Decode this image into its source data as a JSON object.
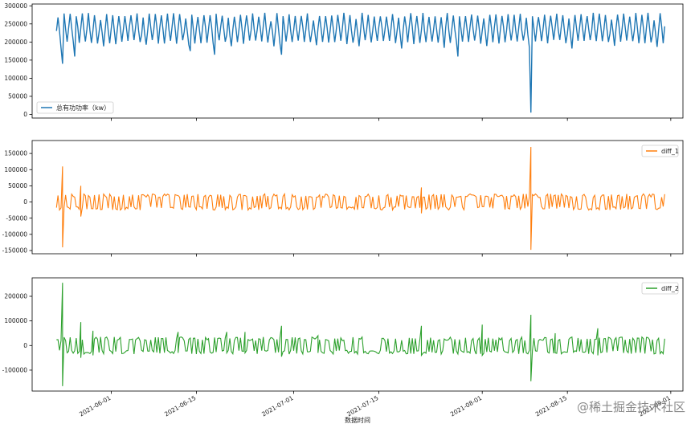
{
  "chart_data": [
    {
      "type": "line",
      "series": [
        {
          "name": "总有功功率（kw）",
          "color": "#1f77b4"
        }
      ],
      "ylim": [
        -10000,
        305000
      ],
      "yticks": [
        0,
        50000,
        100000,
        150000,
        200000,
        250000,
        300000
      ],
      "ytick_labels": [
        "0",
        "50000",
        "100000",
        "150000",
        "200000",
        "250000",
        "300000"
      ],
      "legend_position": "lower-left",
      "profile": {
        "daily_min": 200000,
        "daily_max": 275000,
        "night_dip": 165000
      },
      "events": [
        {
          "x": "2021-05-24",
          "y": 140000
        },
        {
          "x": "2021-05-26",
          "y": 160000
        },
        {
          "x": "2021-06-14",
          "y": 175000
        },
        {
          "x": "2021-06-18",
          "y": 165000
        },
        {
          "x": "2021-06-29",
          "y": 165000
        },
        {
          "x": "2021-07-28",
          "y": 160000
        },
        {
          "x": "2021-08-09",
          "y": 5000
        }
      ]
    },
    {
      "type": "line",
      "series": [
        {
          "name": "diff_1",
          "color": "#ff7f0e"
        }
      ],
      "ylim": [
        -160000,
        190000
      ],
      "yticks": [
        -150000,
        -100000,
        -50000,
        0,
        50000,
        100000,
        150000
      ],
      "ytick_labels": [
        "-150000",
        "-100000",
        "-50000",
        "0",
        "50000",
        "100000",
        "150000"
      ],
      "legend_position": "top-right",
      "band": [
        -25000,
        25000
      ],
      "spikes": [
        {
          "x": "2021-05-24",
          "high": 110000,
          "low": -140000
        },
        {
          "x": "2021-05-27",
          "high": 50000,
          "low": -45000
        },
        {
          "x": "2021-07-22",
          "high": 45000,
          "low": -35000
        },
        {
          "x": "2021-08-09",
          "high": 170000,
          "low": -148000
        }
      ]
    },
    {
      "type": "line",
      "series": [
        {
          "name": "diff_2",
          "color": "#2ca02c"
        }
      ],
      "ylim": [
        -185000,
        275000
      ],
      "yticks": [
        -100000,
        0,
        100000,
        200000
      ],
      "ytick_labels": [
        "-100000",
        "0",
        "100000",
        "200000"
      ],
      "legend_position": "top-right",
      "band": [
        -35000,
        35000
      ],
      "spikes": [
        {
          "x": "2021-05-24",
          "high": 255000,
          "low": -165000
        },
        {
          "x": "2021-05-27",
          "high": 95000,
          "low": -50000
        },
        {
          "x": "2021-05-29",
          "high": 60000,
          "low": -40000
        },
        {
          "x": "2021-06-12",
          "high": 55000,
          "low": -30000
        },
        {
          "x": "2021-06-20",
          "high": 55000,
          "low": -30000
        },
        {
          "x": "2021-06-23",
          "high": 55000,
          "low": -30000
        },
        {
          "x": "2021-06-29",
          "high": 80000,
          "low": -45000
        },
        {
          "x": "2021-07-05",
          "high": 40000,
          "low": -30000
        },
        {
          "x": "2021-07-22",
          "high": 80000,
          "low": -40000
        },
        {
          "x": "2021-08-01",
          "high": 85000,
          "low": -40000
        },
        {
          "x": "2021-08-09",
          "high": 125000,
          "low": -145000
        },
        {
          "x": "2021-08-13",
          "high": 50000,
          "low": -30000
        },
        {
          "x": "2021-08-20",
          "high": 70000,
          "low": -40000
        }
      ]
    }
  ],
  "x_axis": {
    "start": "2021-05-19",
    "end": "2021-09-03",
    "data_start": "2021-05-23",
    "data_end": "2021-08-31",
    "ticks": [
      "2021-06-01",
      "2021-06-15",
      "2021-07-01",
      "2021-07-15",
      "2021-08-01",
      "2021-08-15",
      "2021-09-01"
    ],
    "tick_labels": [
      "2021-06-01",
      "2021-06-15",
      "2021-07-01",
      "2021-07-15",
      "2021-08-01",
      "2021-08-15",
      "2021-09-01"
    ],
    "label": "数据时间"
  },
  "watermark": "@稀土掘金技术社区"
}
